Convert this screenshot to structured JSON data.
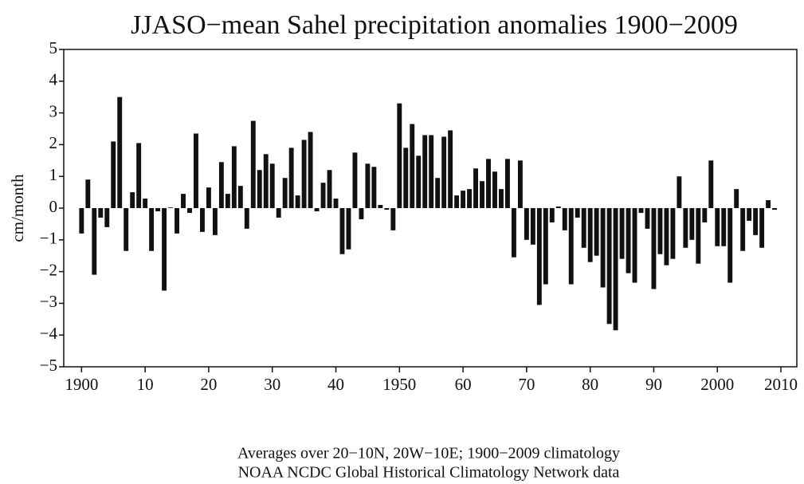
{
  "chart_data": {
    "type": "bar",
    "title": "JJASO−mean Sahel precipitation anomalies 1900−2009",
    "ylabel": "cm/month",
    "notes": [
      "Averages over 20−10N, 20W−10E; 1900−2009 climatology",
      "NOAA NCDC Global Historical Climatology Network data"
    ],
    "color": "#111111",
    "x": [
      1900,
      1901,
      1902,
      1903,
      1904,
      1905,
      1906,
      1907,
      1908,
      1909,
      1910,
      1911,
      1912,
      1913,
      1914,
      1915,
      1916,
      1917,
      1918,
      1919,
      1920,
      1921,
      1922,
      1923,
      1924,
      1925,
      1926,
      1927,
      1928,
      1929,
      1930,
      1931,
      1932,
      1933,
      1934,
      1935,
      1936,
      1937,
      1938,
      1939,
      1940,
      1941,
      1942,
      1943,
      1944,
      1945,
      1946,
      1947,
      1948,
      1949,
      1950,
      1951,
      1952,
      1953,
      1954,
      1955,
      1956,
      1957,
      1958,
      1959,
      1960,
      1961,
      1962,
      1963,
      1964,
      1965,
      1966,
      1967,
      1968,
      1969,
      1970,
      1971,
      1972,
      1973,
      1974,
      1975,
      1976,
      1977,
      1978,
      1979,
      1980,
      1981,
      1982,
      1983,
      1984,
      1985,
      1986,
      1987,
      1988,
      1989,
      1990,
      1991,
      1992,
      1993,
      1994,
      1995,
      1996,
      1997,
      1998,
      1999,
      2000,
      2001,
      2002,
      2003,
      2004,
      2005,
      2006,
      2007,
      2008,
      2009
    ],
    "values": [
      -0.8,
      0.9,
      -2.1,
      -0.3,
      -0.6,
      2.1,
      3.5,
      -1.35,
      0.5,
      2.05,
      0.3,
      -1.35,
      -0.1,
      -2.6,
      0.02,
      -0.8,
      0.45,
      -0.15,
      2.35,
      -0.75,
      0.65,
      -0.85,
      1.45,
      0.45,
      1.95,
      0.7,
      -0.65,
      2.75,
      1.2,
      1.7,
      1.4,
      -0.3,
      0.95,
      1.9,
      0.4,
      2.15,
      2.4,
      -0.1,
      0.8,
      1.2,
      0.3,
      -1.45,
      -1.3,
      1.75,
      -0.35,
      1.4,
      1.3,
      0.1,
      -0.05,
      -0.7,
      3.3,
      1.9,
      2.65,
      1.65,
      2.3,
      2.3,
      0.95,
      2.25,
      2.45,
      0.4,
      0.55,
      0.6,
      1.25,
      0.85,
      1.55,
      1.15,
      0.6,
      1.55,
      -1.55,
      1.5,
      -1.0,
      -1.15,
      -3.05,
      -2.4,
      -0.45,
      0.05,
      -0.7,
      -2.4,
      -0.3,
      -1.25,
      -1.7,
      -1.5,
      -2.5,
      -3.65,
      -3.85,
      -1.6,
      -2.05,
      -2.35,
      -0.15,
      -0.65,
      -2.55,
      -1.45,
      -1.8,
      -1.6,
      1.0,
      -1.25,
      -1.0,
      -1.75,
      -0.45,
      1.5,
      -1.2,
      -1.2,
      -2.35,
      0.6,
      -1.35,
      -0.4,
      -0.85,
      -1.25,
      0.25,
      -0.05
    ],
    "xlim": [
      1897.2,
      2012.5
    ],
    "xticks": [
      1900,
      {
        "value": 1910,
        "label": "10"
      },
      {
        "value": 1920,
        "label": "20"
      },
      {
        "value": 1930,
        "label": "30"
      },
      {
        "value": 1940,
        "label": "40"
      },
      1950,
      {
        "value": 1960,
        "label": "60"
      },
      {
        "value": 1970,
        "label": "70"
      },
      {
        "value": 1980,
        "label": "80"
      },
      {
        "value": 1990,
        "label": "90"
      },
      2000,
      2010
    ],
    "ylim": [
      -5,
      5
    ],
    "yticks": [
      {
        "value": -5,
        "label": "−5"
      },
      {
        "value": -4,
        "label": "−4"
      },
      {
        "value": -3,
        "label": "−3"
      },
      {
        "value": -2,
        "label": "−2"
      },
      {
        "value": -1,
        "label": "−1"
      },
      0,
      1,
      2,
      3,
      4,
      5
    ],
    "grid": false
  }
}
